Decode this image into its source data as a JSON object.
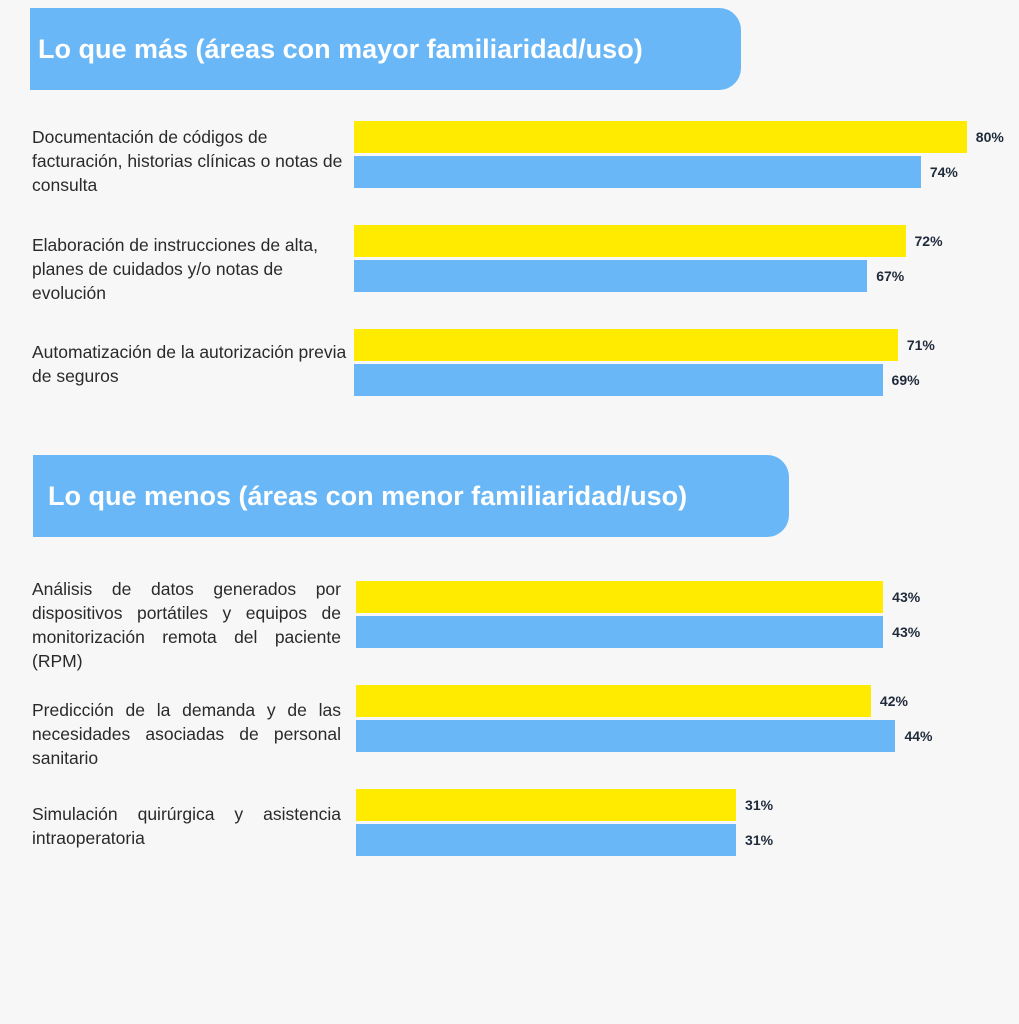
{
  "colors": {
    "series_a": "#ffeb00",
    "series_b": "#69b7f6",
    "header": "#69b7f6",
    "background": "#f7f7f7"
  },
  "chart_data": [
    {
      "type": "bar",
      "orientation": "horizontal",
      "title": "Lo que más (áreas con mayor familiaridad/uso)",
      "categories": [
        "Documentación de códigos de facturación, historias clínicas o notas de consulta",
        "Elaboración de instrucciones de alta, planes de cuidados y/o notas de evolución",
        "Automatización de la autorización previa de seguros"
      ],
      "series": [
        {
          "name": "yellow",
          "color": "#ffeb00",
          "values": [
            80,
            72,
            71
          ]
        },
        {
          "name": "blue",
          "color": "#69b7f6",
          "values": [
            74,
            67,
            69
          ]
        }
      ],
      "value_format": "percent"
    },
    {
      "type": "bar",
      "orientation": "horizontal",
      "title": "Lo que menos (áreas con menor familiaridad/uso)",
      "categories": [
        "Análisis de datos generados por dispositivos portátiles y equipos de monitorización remota del paciente (RPM)",
        "Predicción de la demanda y de las necesidades asociadas de personal sanitario",
        "Simulación quirúrgica y asistencia intraoperatoria"
      ],
      "series": [
        {
          "name": "yellow",
          "color": "#ffeb00",
          "values": [
            43,
            42,
            31
          ]
        },
        {
          "name": "blue",
          "color": "#69b7f6",
          "values": [
            43,
            44,
            31
          ]
        }
      ],
      "value_format": "percent"
    }
  ]
}
